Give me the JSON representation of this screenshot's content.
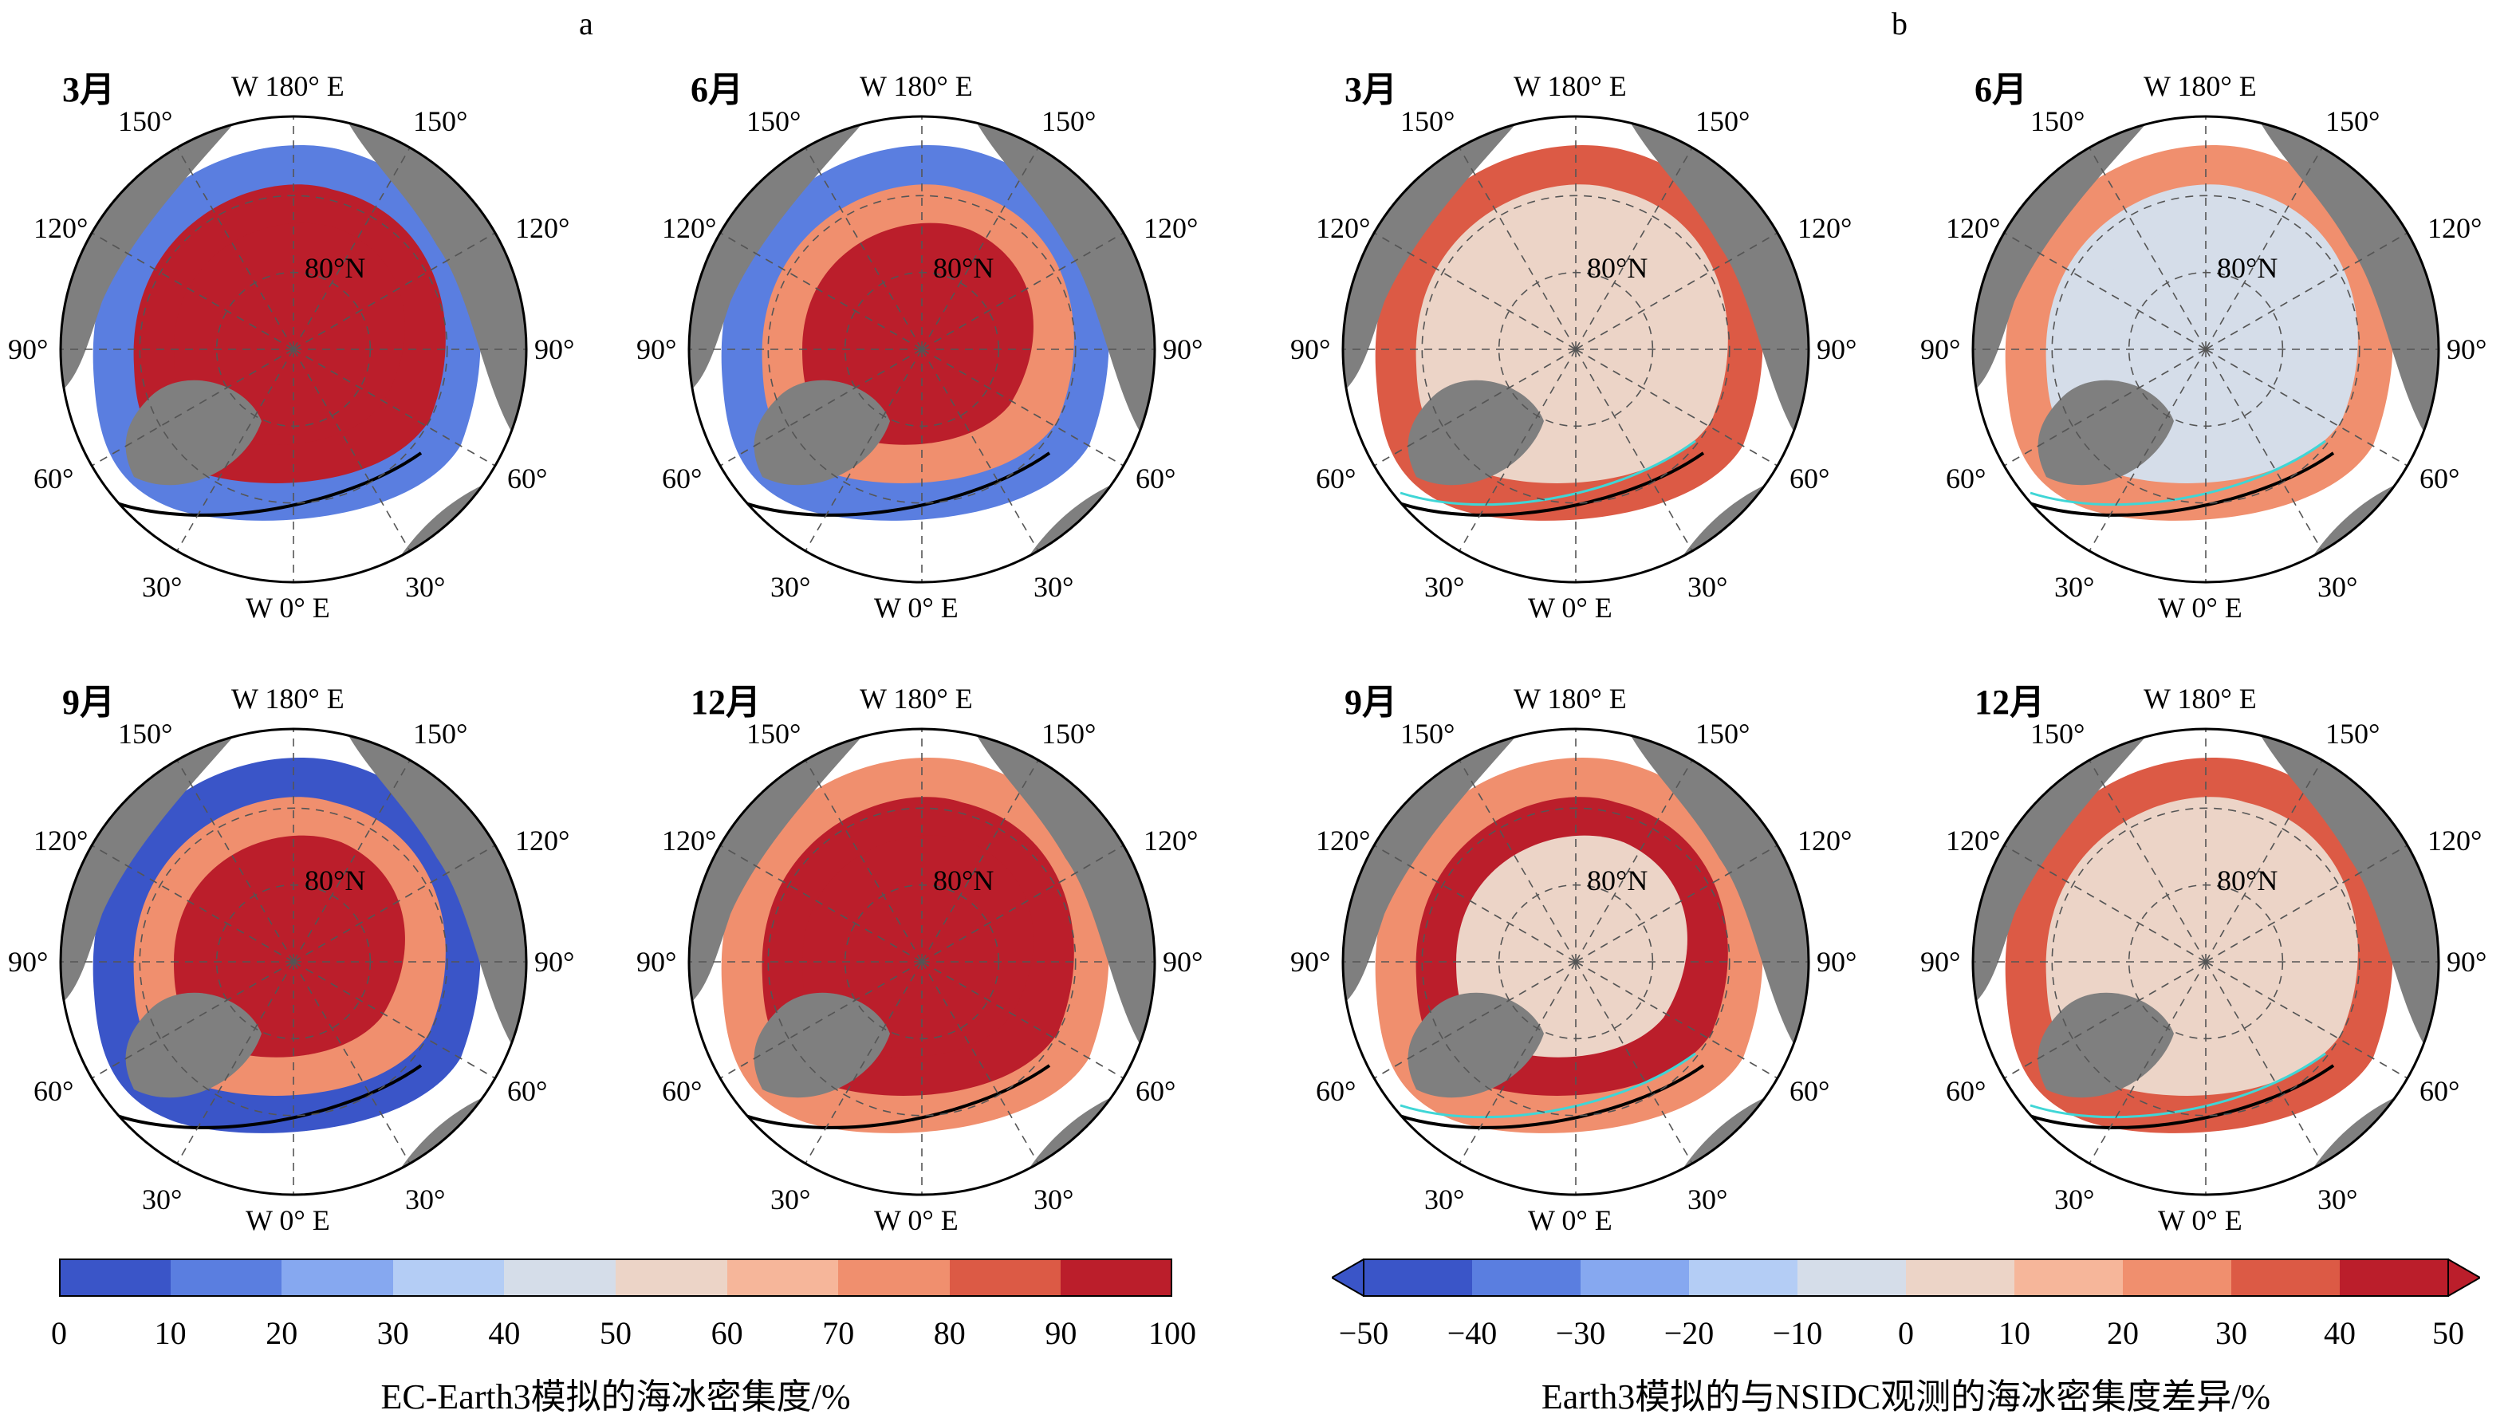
{
  "panels": [
    {
      "letter": "a",
      "colorbar_title": "EC-Earth3模拟的海冰密集度/%"
    },
    {
      "letter": "b",
      "colorbar_title": "Earth3模拟的与NSIDC观测的海冰密集度差异/%"
    }
  ],
  "months": [
    "3月",
    "6月",
    "9月",
    "12月"
  ],
  "map_labels": {
    "top": "W 180° E",
    "bottom": "W 0° E",
    "lon_150": "150°",
    "lon_120": "120°",
    "lon_90": "90°",
    "lon_60": "60°",
    "lon_30": "30°",
    "lat": "80°N"
  },
  "colorbar_a": {
    "ticks": [
      "0",
      "10",
      "20",
      "30",
      "40",
      "50",
      "60",
      "70",
      "80",
      "90",
      "100"
    ],
    "colors": [
      "#3a55c8",
      "#5a7ee0",
      "#86a8f0",
      "#b4cdf5",
      "#d5dde9",
      "#ecd4c7",
      "#f6b69a",
      "#f08f6e",
      "#dc5a45",
      "#bb1e2b"
    ]
  },
  "colorbar_b": {
    "ticks": [
      "−50",
      "−40",
      "−30",
      "−20",
      "−10",
      "0",
      "10",
      "20",
      "30",
      "40",
      "50"
    ],
    "colors": [
      "#3a55c8",
      "#5a7ee0",
      "#86a8f0",
      "#b4cdf5",
      "#d5dde9",
      "#ecd4c7",
      "#f6b69a",
      "#f08f6e",
      "#dc5a45",
      "#bb1e2b"
    ]
  },
  "colors": {
    "land": "#7f7f7f",
    "ice_high": "#bb1e2b",
    "ice_low": "#3a55c8",
    "diff_neutral": "#ecd4c7",
    "obs_edge": "#000000",
    "model_edge": "#3fd6d6"
  },
  "map_variants": [
    {
      "group": "a",
      "month": "3月",
      "center": "#bb1e2b",
      "mid": "#bb1e2b",
      "edge": "#5a7ee0"
    },
    {
      "group": "a",
      "month": "6月",
      "center": "#bb1e2b",
      "mid": "#f08f6e",
      "edge": "#5a7ee0"
    },
    {
      "group": "b",
      "month": "3月",
      "center": "#ecd4c7",
      "mid": "#ecd4c7",
      "edge": "#dc5a45"
    },
    {
      "group": "b",
      "month": "6月",
      "center": "#d5dde9",
      "mid": "#d5dde9",
      "edge": "#f08f6e"
    },
    {
      "group": "a",
      "month": "9月",
      "center": "#bb1e2b",
      "mid": "#f08f6e",
      "edge": "#3a55c8"
    },
    {
      "group": "a",
      "month": "12月",
      "center": "#bb1e2b",
      "mid": "#bb1e2b",
      "edge": "#f08f6e"
    },
    {
      "group": "b",
      "month": "9月",
      "center": "#ecd4c7",
      "mid": "#bb1e2b",
      "edge": "#f08f6e"
    },
    {
      "group": "b",
      "month": "12月",
      "center": "#ecd4c7",
      "mid": "#ecd4c7",
      "edge": "#dc5a45"
    }
  ]
}
